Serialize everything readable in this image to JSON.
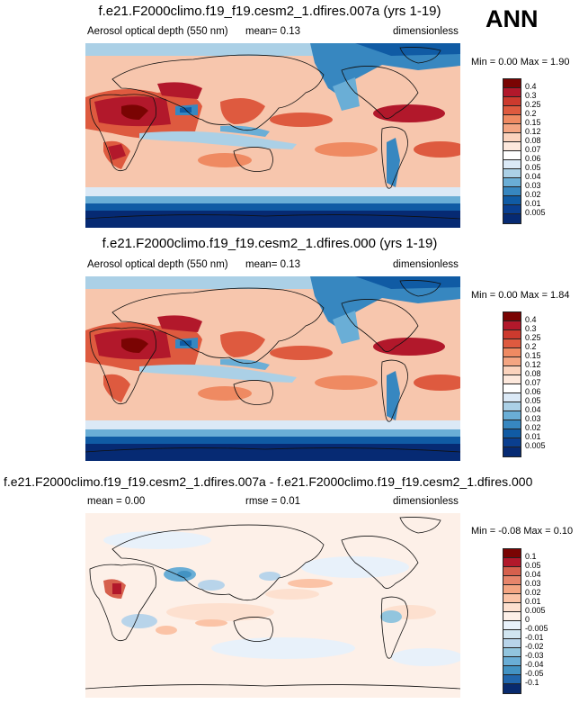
{
  "season": "ANN",
  "panels": [
    {
      "title": "f.e21.F2000climo.f19_f19.cesm2_1.dfires.007a (yrs 1-19)",
      "left_label": "Aerosol optical depth (550 nm)",
      "stat": "mean=  0.13",
      "units": "dimensionless",
      "minmax": "Min =  0.00 Max =  1.90",
      "colorbar": {
        "labels": [
          "0.4",
          "0.3",
          "0.25",
          "0.2",
          "0.15",
          "0.12",
          "0.08",
          "0.07",
          "0.06",
          "0.05",
          "0.04",
          "0.03",
          "0.02",
          "0.01",
          "0.005"
        ],
        "colors": [
          "#7a0403",
          "#b2182b",
          "#cc3a2e",
          "#de5a3f",
          "#ef8a62",
          "#f4a582",
          "#fbd3bd",
          "#fde8dc",
          "#ffffff",
          "#dbe9f6",
          "#abd0e6",
          "#6aaed6",
          "#3787c0",
          "#105ba4",
          "#0a3f90",
          "#062a73"
        ]
      }
    },
    {
      "title": "f.e21.F2000climo.f19_f19.cesm2_1.dfires.000 (yrs 1-19)",
      "left_label": "Aerosol optical depth (550 nm)",
      "stat": "mean=  0.13",
      "units": "dimensionless",
      "minmax": "Min =  0.00 Max =  1.84",
      "colorbar": {
        "labels": [
          "0.4",
          "0.3",
          "0.25",
          "0.2",
          "0.15",
          "0.12",
          "0.08",
          "0.07",
          "0.06",
          "0.05",
          "0.04",
          "0.03",
          "0.02",
          "0.01",
          "0.005"
        ],
        "colors": [
          "#7a0403",
          "#b2182b",
          "#cc3a2e",
          "#de5a3f",
          "#ef8a62",
          "#f4a582",
          "#fbd3bd",
          "#fde8dc",
          "#ffffff",
          "#dbe9f6",
          "#abd0e6",
          "#6aaed6",
          "#3787c0",
          "#105ba4",
          "#0a3f90",
          "#062a73"
        ]
      }
    },
    {
      "title": "f.e21.F2000climo.f19_f19.cesm2_1.dfires.007a - f.e21.F2000climo.f19_f19.cesm2_1.dfires.000",
      "left_label": "mean =  0.00",
      "stat": "rmse =  0.01",
      "units": "dimensionless",
      "minmax": "Min = -0.08 Max =  0.10",
      "colorbar": {
        "labels": [
          "0.1",
          "0.05",
          "0.04",
          "0.03",
          "0.02",
          "0.01",
          "0.005",
          "0",
          "-0.005",
          "-0.01",
          "-0.02",
          "-0.03",
          "-0.04",
          "-0.05",
          "-0.1"
        ],
        "colors": [
          "#7a0403",
          "#b2182b",
          "#d6604d",
          "#e7856b",
          "#f4a582",
          "#fbc3a6",
          "#fde0cf",
          "#fdf0e8",
          "#e8f1fa",
          "#d1e5f0",
          "#b8d4ea",
          "#92c5de",
          "#6aaed6",
          "#4393c3",
          "#2166ac",
          "#082a6e"
        ]
      }
    }
  ]
}
